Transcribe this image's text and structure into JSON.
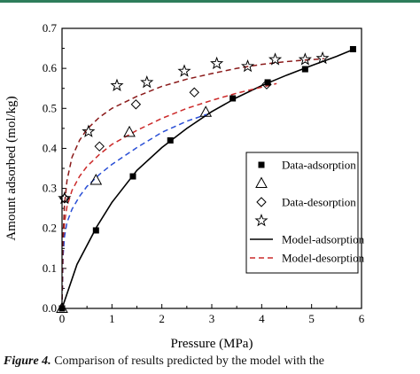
{
  "chart_data": {
    "type": "scatter",
    "xlabel": "Pressure (MPa)",
    "ylabel": "Amount adsorbed (mol/kg)",
    "xlim": [
      0,
      6
    ],
    "ylim": [
      0,
      0.7
    ],
    "x_ticks": [
      0,
      1,
      2,
      3,
      4,
      5,
      6
    ],
    "y_ticks": [
      0.0,
      0.1,
      0.2,
      0.3,
      0.4,
      0.5,
      0.6,
      0.7
    ],
    "x_tick_labels": [
      "0",
      "1",
      "2",
      "3",
      "4",
      "5",
      "6"
    ],
    "y_tick_labels": [
      "0.0",
      "0.1",
      "0.2",
      "0.3",
      "0.4",
      "0.5",
      "0.6",
      "0.7"
    ],
    "legend_position": "center-right",
    "series": [
      {
        "name": "Data-adsorption",
        "kind": "points",
        "marker": "square-filled",
        "color": "#000000",
        "x": [
          0.0,
          0.68,
          1.42,
          2.17,
          3.42,
          4.12,
          4.87,
          5.83
        ],
        "y": [
          0.0,
          0.195,
          0.33,
          0.42,
          0.525,
          0.565,
          0.598,
          0.648
        ]
      },
      {
        "name": "",
        "kind": "points",
        "marker": "triangle-open",
        "color": "#000000",
        "x": [
          0.0,
          0.68,
          1.35,
          2.88
        ],
        "y": [
          0.0,
          0.32,
          0.44,
          0.49
        ]
      },
      {
        "name": "Data-desorption",
        "kind": "points",
        "marker": "diamond-open",
        "color": "#000000",
        "x": [
          0.05,
          0.75,
          1.48,
          2.65,
          4.1
        ],
        "y": [
          0.275,
          0.405,
          0.51,
          0.54,
          0.56
        ]
      },
      {
        "name": "",
        "kind": "points",
        "marker": "star-open",
        "color": "#000000",
        "x": [
          0.05,
          0.53,
          1.1,
          1.7,
          2.45,
          3.1,
          3.72,
          4.27,
          4.87,
          5.22
        ],
        "y": [
          0.275,
          0.442,
          0.557,
          0.565,
          0.593,
          0.612,
          0.605,
          0.622,
          0.622,
          0.625
        ]
      },
      {
        "name": "Model-adsorption",
        "kind": "line",
        "dash": "solid",
        "color": "#000000",
        "x": [
          0.0,
          0.3,
          0.7,
          1.0,
          1.5,
          2.0,
          2.5,
          3.0,
          3.5,
          4.0,
          4.5,
          5.0,
          5.5,
          5.85
        ],
        "y": [
          0.0,
          0.11,
          0.205,
          0.265,
          0.345,
          0.402,
          0.45,
          0.492,
          0.527,
          0.557,
          0.583,
          0.607,
          0.63,
          0.648
        ]
      },
      {
        "name": "Model-desorption",
        "kind": "line",
        "dash": "dashed",
        "color": "#cc2a2a",
        "x": [
          0.0,
          0.02,
          0.05,
          0.1,
          0.2,
          0.35,
          0.5,
          0.75,
          1.0,
          1.5,
          2.0,
          2.5,
          3.0,
          3.5,
          4.0,
          4.3
        ],
        "y": [
          0.0,
          0.15,
          0.215,
          0.255,
          0.295,
          0.33,
          0.355,
          0.385,
          0.41,
          0.445,
          0.475,
          0.5,
          0.52,
          0.538,
          0.553,
          0.562
        ]
      },
      {
        "name": "",
        "kind": "line",
        "dash": "dashed",
        "color": "#2a4fd6",
        "x": [
          0.0,
          0.02,
          0.05,
          0.1,
          0.2,
          0.35,
          0.5,
          0.75,
          1.0,
          1.5,
          2.0,
          2.5,
          2.9
        ],
        "y": [
          0.0,
          0.13,
          0.18,
          0.215,
          0.248,
          0.28,
          0.305,
          0.335,
          0.36,
          0.402,
          0.44,
          0.468,
          0.485
        ]
      },
      {
        "name": "",
        "kind": "line",
        "dash": "dashed",
        "color": "#8a1a1a",
        "x": [
          0.0,
          0.02,
          0.05,
          0.1,
          0.2,
          0.35,
          0.5,
          0.75,
          1.0,
          1.5,
          2.0,
          2.5,
          3.0,
          3.5,
          4.0,
          4.5,
          5.0,
          5.25
        ],
        "y": [
          0.0,
          0.18,
          0.26,
          0.32,
          0.378,
          0.42,
          0.448,
          0.478,
          0.5,
          0.53,
          0.555,
          0.573,
          0.587,
          0.6,
          0.61,
          0.617,
          0.622,
          0.624
        ]
      }
    ],
    "legend": [
      {
        "label": "Data-adsorption",
        "symbol": "square-filled"
      },
      {
        "label": "",
        "symbol": "triangle-open"
      },
      {
        "label": "Data-desorption",
        "symbol": "diamond-open"
      },
      {
        "label": "",
        "symbol": "star-open"
      },
      {
        "label": "Model-adsorption",
        "symbol": "solid-black"
      },
      {
        "label": "Model-desorption",
        "symbol": "dashed-red"
      }
    ]
  },
  "caption": {
    "label": "Figure 4.",
    "text": " Comparison of results predicted by the model with the"
  },
  "colors": {
    "accent_rule": "#2e7d5b",
    "model_desorption": "#cc2a2a",
    "blue_dashed": "#2a4fd6"
  }
}
